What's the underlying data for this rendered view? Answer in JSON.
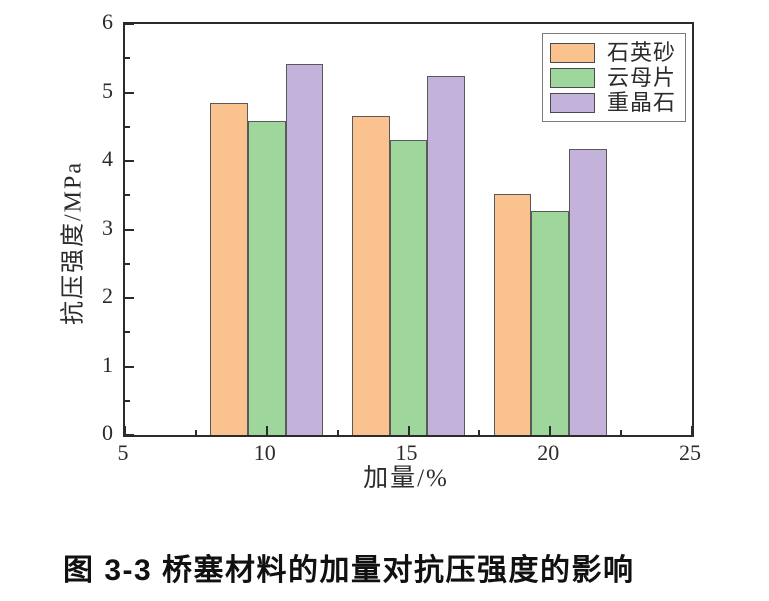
{
  "figure": {
    "caption": "图 3-3 桥塞材料的加量对抗压强度的影响"
  },
  "chart_data": {
    "type": "bar",
    "title": "",
    "xlabel": "加量/%",
    "ylabel": "抗压强度/MPa",
    "categories": [
      10,
      15,
      20
    ],
    "series": [
      {
        "name": "石英砂",
        "color": "#FAC28E",
        "values": [
          4.85,
          4.65,
          3.52
        ]
      },
      {
        "name": "云母片",
        "color": "#9ED69C",
        "values": [
          4.58,
          4.3,
          3.27
        ]
      },
      {
        "name": "重晶石",
        "color": "#C3B2D9",
        "values": [
          5.42,
          5.24,
          4.17
        ]
      }
    ],
    "xlim": [
      5,
      25
    ],
    "ylim": [
      0,
      6
    ],
    "x_major_ticks": [
      5,
      10,
      15,
      20,
      25
    ],
    "x_minor_ticks": [
      7.5,
      12.5,
      17.5,
      22.5
    ],
    "y_major_ticks": [
      0,
      1,
      2,
      3,
      4,
      5,
      6
    ],
    "y_minor_ticks": [
      0.5,
      1.5,
      2.5,
      3.5,
      4.5,
      5.5
    ],
    "bar_width": 1.33,
    "bar_border_color": "#595959",
    "axis_color": "#2b2b2b",
    "background_color": "#ffffff",
    "legend_position": "top-right",
    "grid": false
  }
}
